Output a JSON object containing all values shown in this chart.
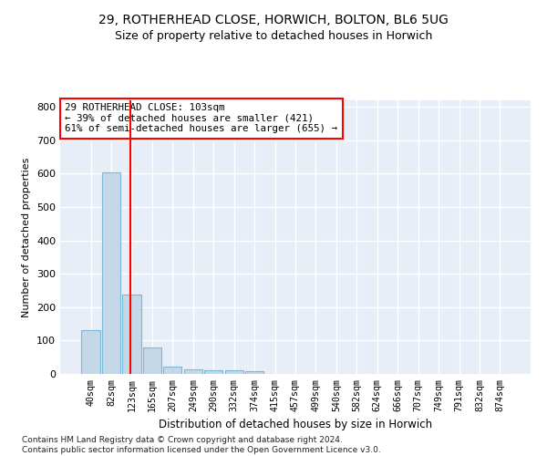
{
  "title_line1": "29, ROTHERHEAD CLOSE, HORWICH, BOLTON, BL6 5UG",
  "title_line2": "Size of property relative to detached houses in Horwich",
  "xlabel": "Distribution of detached houses by size in Horwich",
  "ylabel": "Number of detached properties",
  "footnote": "Contains HM Land Registry data © Crown copyright and database right 2024.\nContains public sector information licensed under the Open Government Licence v3.0.",
  "bar_labels": [
    "40sqm",
    "82sqm",
    "123sqm",
    "165sqm",
    "207sqm",
    "249sqm",
    "290sqm",
    "332sqm",
    "374sqm",
    "415sqm",
    "457sqm",
    "499sqm",
    "540sqm",
    "582sqm",
    "624sqm",
    "666sqm",
    "707sqm",
    "749sqm",
    "791sqm",
    "832sqm",
    "874sqm"
  ],
  "bar_values": [
    130,
    605,
    238,
    80,
    21,
    13,
    11,
    10,
    9,
    0,
    0,
    0,
    0,
    0,
    0,
    0,
    0,
    0,
    0,
    0,
    0
  ],
  "bar_color": "#c5d8e8",
  "bar_edge_color": "#7ab8d8",
  "property_line_x": 1.93,
  "property_line_label": "29 ROTHERHEAD CLOSE: 103sqm",
  "annotation_line1": "← 39% of detached houses are smaller (421)",
  "annotation_line2": "61% of semi-detached houses are larger (655) →",
  "annotation_box_color": "white",
  "annotation_box_edge": "red",
  "vline_color": "red",
  "ylim": [
    0,
    820
  ],
  "yticks": [
    0,
    100,
    200,
    300,
    400,
    500,
    600,
    700,
    800
  ],
  "bg_color": "#e8eef8",
  "grid_color": "white",
  "title_fontsize": 10,
  "subtitle_fontsize": 9,
  "footnote_fontsize": 6.5
}
